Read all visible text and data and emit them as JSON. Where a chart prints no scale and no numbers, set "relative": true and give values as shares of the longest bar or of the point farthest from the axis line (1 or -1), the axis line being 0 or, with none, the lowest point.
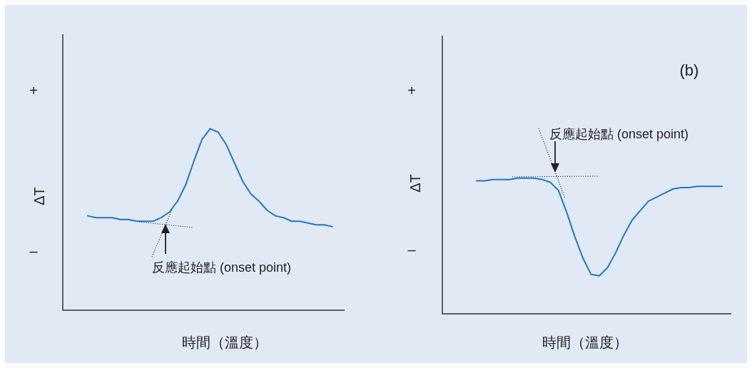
{
  "chart_data": [
    {
      "type": "line",
      "relative": true,
      "color": "#1f78c8",
      "xlabel": "時間（溫度）",
      "ylabel": "ΔT",
      "annotations": [
        "+",
        "–",
        "反應起始點 (onset point)"
      ],
      "categories": [
        null,
        null,
        null,
        null,
        null,
        null,
        null,
        null,
        null,
        null,
        null,
        null,
        null,
        null,
        null,
        null,
        null,
        null,
        null,
        null,
        null,
        null,
        null,
        null,
        null,
        null,
        null,
        null,
        null,
        null,
        null
      ],
      "values": [
        0.52,
        0.51,
        0.51,
        0.51,
        0.5,
        0.5,
        0.49,
        0.49,
        0.49,
        0.51,
        0.54,
        0.6,
        0.69,
        0.82,
        0.94,
        1,
        0.98,
        0.91,
        0.81,
        0.71,
        0.64,
        0.6,
        0.55,
        0.52,
        0.51,
        0.49,
        0.49,
        0.48,
        0.47,
        0.47,
        0.46
      ]
    },
    {
      "type": "line",
      "relative": true,
      "color": "#1f78c8",
      "xlabel": "時間（溫度）",
      "ylabel": "ΔT",
      "annotations": [
        "+",
        "–",
        "(b)",
        "反應起始點 (onset point)"
      ],
      "categories": [
        null,
        null,
        null,
        null,
        null,
        null,
        null,
        null,
        null,
        null,
        null,
        null,
        null,
        null,
        null,
        null,
        null,
        null,
        null,
        null,
        null,
        null,
        null,
        null,
        null,
        null,
        null,
        null,
        null,
        null,
        null
      ],
      "values": [
        0.98,
        0.98,
        0.99,
        0.99,
        0.99,
        1,
        1,
        1,
        0.99,
        0.97,
        0.91,
        0.75,
        0.57,
        0.41,
        0.29,
        0.28,
        0.34,
        0.45,
        0.58,
        0.69,
        0.76,
        0.83,
        0.86,
        0.89,
        0.92,
        0.93,
        0.93,
        0.94,
        0.94,
        0.94,
        0.94
      ]
    }
  ]
}
